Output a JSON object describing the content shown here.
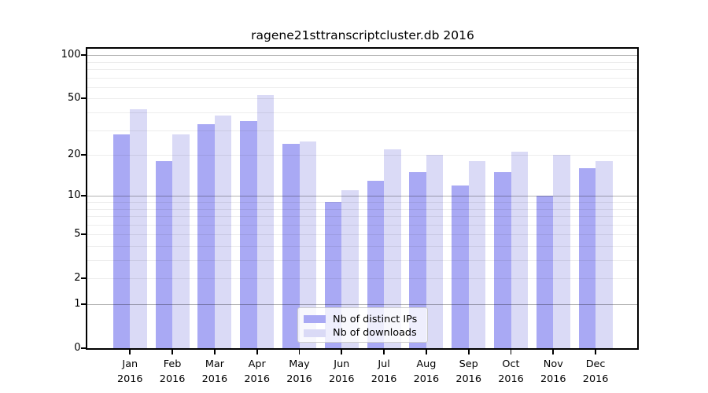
{
  "title": "ragene21sttranscriptcluster.db 2016",
  "chart_data": {
    "type": "bar",
    "yscale": "log10(1+x)",
    "title": "ragene21sttranscriptcluster.db 2016",
    "categories": [
      "Jan",
      "Feb",
      "Mar",
      "Apr",
      "May",
      "Jun",
      "Jul",
      "Aug",
      "Sep",
      "Oct",
      "Nov",
      "Dec"
    ],
    "x_year_label": "2016",
    "series": [
      {
        "name": "Nb of distinct IPs",
        "color": "#a9a9f4",
        "values": [
          28,
          18,
          33,
          35,
          24,
          9,
          13,
          15,
          12,
          15,
          10,
          16
        ]
      },
      {
        "name": "Nb of downloads",
        "color": "#dadaf6",
        "values": [
          42,
          28,
          38,
          53,
          25,
          11,
          22,
          20,
          18,
          21,
          20,
          18
        ]
      }
    ],
    "yticks": [
      0,
      1,
      2,
      5,
      10,
      20,
      50,
      100
    ],
    "ylim": [
      0,
      110
    ],
    "grid": true,
    "minor_grid_values": [
      2,
      3,
      4,
      5,
      6,
      7,
      8,
      9,
      20,
      30,
      40,
      50,
      60,
      70,
      80,
      90
    ],
    "decade_grid_values": [
      1,
      10,
      100
    ],
    "legend_position": "bottom-center"
  },
  "colors": {
    "background": "#ffffff",
    "axis": "#000000",
    "text": "#000000",
    "grid_minor": "rgba(0,0,0,0.07)",
    "grid_decade": "rgba(0,0,0,0.30)",
    "legend_border": "#cccccc",
    "legend_background": "rgba(255,255,255,0.8)",
    "bar_distinct_ips": "#a9a9f4",
    "bar_downloads": "#dadaf6"
  }
}
